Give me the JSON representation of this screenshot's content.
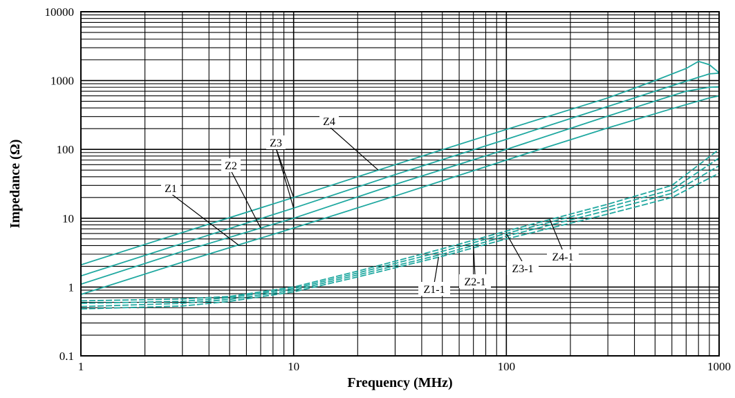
{
  "chart_data": {
    "type": "line",
    "xlabel": "Frequency (MHz)",
    "ylabel": "Impedance (Ω)",
    "x_scale": "log",
    "y_scale": "log",
    "xlim": [
      1,
      1000
    ],
    "ylim": [
      0.1,
      10000
    ],
    "x_ticks": [
      "1",
      "10",
      "100",
      "1000"
    ],
    "y_ticks": [
      "0.1",
      "1",
      "10",
      "100",
      "1000",
      "10000"
    ],
    "grid": true,
    "line_color": "#1fa8a0",
    "series": [
      {
        "name": "Z4",
        "style": "solid",
        "x": [
          1,
          3,
          10,
          30,
          100,
          300,
          500,
          700,
          800,
          900,
          1000
        ],
        "y": [
          2.1,
          6.2,
          20,
          60,
          195,
          560,
          1000,
          1500,
          1900,
          1700,
          1300
        ]
      },
      {
        "name": "Z3",
        "style": "solid",
        "x": [
          1,
          3,
          10,
          30,
          100,
          300,
          600,
          900,
          1000
        ],
        "y": [
          1.45,
          4.3,
          14,
          43,
          140,
          420,
          840,
          1250,
          1280
        ]
      },
      {
        "name": "Z2",
        "style": "solid",
        "x": [
          1,
          3,
          10,
          30,
          100,
          300,
          700,
          900,
          1000
        ],
        "y": [
          1.1,
          3.3,
          10,
          31,
          100,
          305,
          700,
          800,
          810
        ]
      },
      {
        "name": "Z1",
        "style": "solid",
        "x": [
          1,
          3,
          10,
          30,
          100,
          300,
          600,
          900,
          1000
        ],
        "y": [
          0.78,
          2.3,
          7.2,
          21,
          70,
          205,
          390,
          560,
          600
        ]
      },
      {
        "name": "Z4-1",
        "style": "dashed",
        "x": [
          1,
          3,
          5,
          10,
          20,
          50,
          100,
          300,
          600,
          1000
        ],
        "y": [
          0.63,
          0.67,
          0.73,
          1.0,
          1.7,
          3.6,
          6.5,
          16,
          30,
          100
        ]
      },
      {
        "name": "Z3-1",
        "style": "dashed",
        "x": [
          1,
          3,
          5,
          10,
          20,
          50,
          100,
          300,
          600,
          1000
        ],
        "y": [
          0.58,
          0.62,
          0.7,
          0.95,
          1.6,
          3.3,
          6.0,
          14.5,
          26,
          75
        ]
      },
      {
        "name": "Z2-1",
        "style": "dashed",
        "x": [
          1,
          3,
          5,
          10,
          20,
          50,
          100,
          300,
          600,
          1000
        ],
        "y": [
          0.52,
          0.58,
          0.66,
          0.9,
          1.5,
          3.0,
          5.5,
          13,
          23,
          58
        ]
      },
      {
        "name": "Z1-1",
        "style": "dashed",
        "x": [
          1,
          3,
          5,
          10,
          20,
          50,
          100,
          300,
          600,
          1000
        ],
        "y": [
          0.48,
          0.53,
          0.62,
          0.85,
          1.4,
          2.8,
          5.0,
          11.5,
          20,
          45
        ]
      }
    ],
    "annotations": [
      {
        "text": "Z4",
        "series": "Z4",
        "at_x": 25
      },
      {
        "text": "Z3",
        "series": "Z3",
        "at_x": 10
      },
      {
        "text": "Z3",
        "series": "Z4",
        "at_x": 10
      },
      {
        "text": "Z2",
        "series": "Z2",
        "at_x": 7
      },
      {
        "text": "Z1",
        "series": "Z1",
        "at_x": 5.5
      },
      {
        "text": "Z1-1",
        "series": "Z1-1",
        "at_x": 48
      },
      {
        "text": "Z2-1",
        "series": "Z2-1",
        "at_x": 70
      },
      {
        "text": "Z3-1",
        "series": "Z3-1",
        "at_x": 100
      },
      {
        "text": "Z4-1",
        "series": "Z4-1",
        "at_x": 160
      }
    ]
  }
}
